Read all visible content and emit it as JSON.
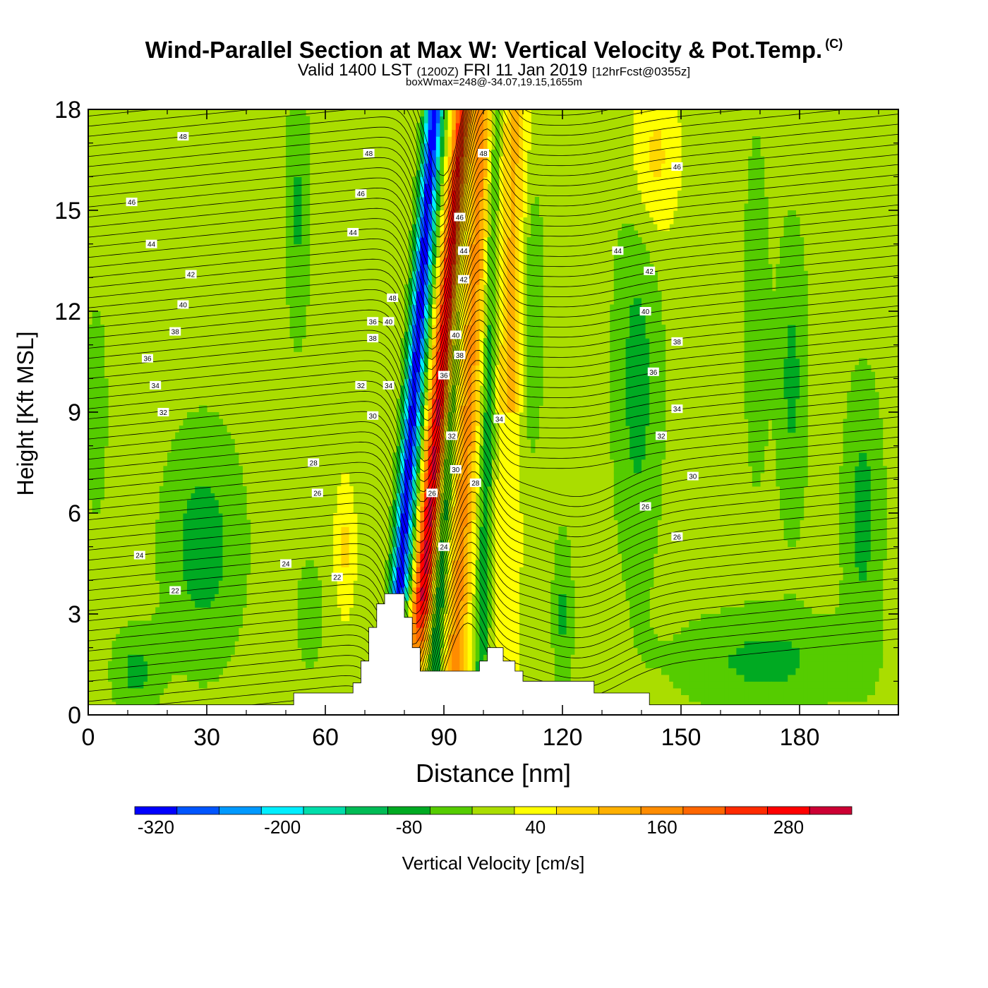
{
  "header": {
    "title": "Wind-Parallel Section at Max W: Vertical Velocity & Pot.Temp.",
    "copyright": "(C)",
    "valid_prefix": "Valid 1400 LST",
    "valid_z": "(1200Z)",
    "valid_date": "FRI 11 Jan 2019",
    "valid_fcst": "[12hrFcst@0355z]",
    "boxwmax": "boxWmax=248@-34.07,19.15,1655m"
  },
  "colors": {
    "frame": "#000000",
    "contour": "#000000",
    "terrain": "#ffffff",
    "background_field": "#aadd00"
  },
  "chart_data": {
    "type": "heatmap",
    "title": "Wind-Parallel Section at Max W: Vertical Velocity & Pot.Temp.",
    "xlabel": "Distance [nm]",
    "ylabel": "Height [Kft MSL]",
    "xlim": [
      0,
      205
    ],
    "ylim": [
      0,
      18
    ],
    "x_ticks": [
      0,
      30,
      60,
      90,
      120,
      150,
      180
    ],
    "x_ticklabels": [
      "0",
      "30",
      "60",
      "90",
      "120",
      "150",
      "180"
    ],
    "y_ticks": [
      0,
      3,
      6,
      9,
      12,
      15,
      18
    ],
    "y_ticklabels": [
      "0",
      "3",
      "6",
      "9",
      "12",
      "15",
      "18"
    ],
    "colorbar": {
      "label": "Vertical Velocity [cm/s]",
      "bounds": [
        -340,
        -300,
        -260,
        -220,
        -180,
        -140,
        -100,
        -60,
        -20,
        20,
        60,
        100,
        140,
        180,
        220,
        260,
        300,
        340
      ],
      "colors": [
        "#0000ff",
        "#0055ff",
        "#0099ff",
        "#00eeff",
        "#00ddaa",
        "#00bb55",
        "#00aa22",
        "#55cc00",
        "#aadd00",
        "#ffff00",
        "#ffd700",
        "#ffb000",
        "#ff8c00",
        "#ff6600",
        "#ff2a00",
        "#ff0000",
        "#cc0033"
      ],
      "tick_values": [
        -320,
        -200,
        -80,
        40,
        160,
        280
      ],
      "tick_labels": [
        "-320",
        "-200",
        "-80",
        "40",
        "160",
        "280"
      ]
    },
    "terrain_kft": [
      [
        0,
        0.3
      ],
      [
        52,
        0.3
      ],
      [
        52,
        0.65
      ],
      [
        67,
        0.65
      ],
      [
        67,
        0.95
      ],
      [
        69,
        0.95
      ],
      [
        69,
        1.6
      ],
      [
        71,
        1.6
      ],
      [
        71,
        2.6
      ],
      [
        73,
        2.6
      ],
      [
        73,
        3.3
      ],
      [
        75,
        3.3
      ],
      [
        75,
        3.6
      ],
      [
        80,
        3.6
      ],
      [
        80,
        2.9
      ],
      [
        82,
        2.9
      ],
      [
        82,
        2.0
      ],
      [
        84,
        2.0
      ],
      [
        84,
        1.3
      ],
      [
        99,
        1.3
      ],
      [
        99,
        1.6
      ],
      [
        101,
        1.6
      ],
      [
        101,
        2.0
      ],
      [
        105,
        2.0
      ],
      [
        105,
        1.6
      ],
      [
        108,
        1.6
      ],
      [
        108,
        1.3
      ],
      [
        110,
        1.3
      ],
      [
        110,
        1.0
      ],
      [
        128,
        1.0
      ],
      [
        128,
        0.65
      ],
      [
        142,
        0.65
      ],
      [
        142,
        0.3
      ],
      [
        205,
        0.3
      ]
    ],
    "w_field": [
      {
        "name": "updraft core",
        "w_max": 248,
        "location": "-34.07,19.15,1655m"
      }
    ],
    "theta_contours": {
      "interval": 2,
      "label_values": [
        "22",
        "24",
        "26",
        "28",
        "30",
        "32",
        "34",
        "36",
        "38",
        "40",
        "42",
        "44",
        "46",
        "48"
      ]
    },
    "contour_labels": [
      {
        "x": 24,
        "y": 17.2,
        "text": "48"
      },
      {
        "x": 71,
        "y": 16.7,
        "text": "48"
      },
      {
        "x": 100,
        "y": 16.7,
        "text": "48"
      },
      {
        "x": 149,
        "y": 16.3,
        "text": "46"
      },
      {
        "x": 11,
        "y": 15.25,
        "text": "46"
      },
      {
        "x": 69,
        "y": 15.5,
        "text": "46"
      },
      {
        "x": 94,
        "y": 14.8,
        "text": "46"
      },
      {
        "x": 16,
        "y": 14.0,
        "text": "44"
      },
      {
        "x": 67,
        "y": 14.35,
        "text": "44"
      },
      {
        "x": 95,
        "y": 13.8,
        "text": "44"
      },
      {
        "x": 134,
        "y": 13.8,
        "text": "44"
      },
      {
        "x": 26,
        "y": 13.1,
        "text": "42"
      },
      {
        "x": 95,
        "y": 12.95,
        "text": "42"
      },
      {
        "x": 142,
        "y": 13.2,
        "text": "42"
      },
      {
        "x": 24,
        "y": 12.2,
        "text": "40"
      },
      {
        "x": 77,
        "y": 12.4,
        "text": "48"
      },
      {
        "x": 76,
        "y": 11.7,
        "text": "40"
      },
      {
        "x": 72,
        "y": 11.7,
        "text": "36"
      },
      {
        "x": 93,
        "y": 11.3,
        "text": "40"
      },
      {
        "x": 141,
        "y": 12.0,
        "text": "40"
      },
      {
        "x": 22,
        "y": 11.4,
        "text": "38"
      },
      {
        "x": 72,
        "y": 11.2,
        "text": "38"
      },
      {
        "x": 94,
        "y": 10.7,
        "text": "38"
      },
      {
        "x": 149,
        "y": 11.1,
        "text": "38"
      },
      {
        "x": 15,
        "y": 10.6,
        "text": "36"
      },
      {
        "x": 90,
        "y": 10.1,
        "text": "36"
      },
      {
        "x": 143,
        "y": 10.2,
        "text": "36"
      },
      {
        "x": 17,
        "y": 9.8,
        "text": "34"
      },
      {
        "x": 69,
        "y": 9.8,
        "text": "32"
      },
      {
        "x": 76,
        "y": 9.8,
        "text": "34"
      },
      {
        "x": 104,
        "y": 8.8,
        "text": "34"
      },
      {
        "x": 149,
        "y": 9.1,
        "text": "34"
      },
      {
        "x": 19,
        "y": 9.0,
        "text": "32"
      },
      {
        "x": 72,
        "y": 8.9,
        "text": "30"
      },
      {
        "x": 92,
        "y": 8.3,
        "text": "32"
      },
      {
        "x": 145,
        "y": 8.3,
        "text": "32"
      },
      {
        "x": 57,
        "y": 7.5,
        "text": "28"
      },
      {
        "x": 93,
        "y": 7.3,
        "text": "30"
      },
      {
        "x": 153,
        "y": 7.1,
        "text": "30"
      },
      {
        "x": 58,
        "y": 6.6,
        "text": "26"
      },
      {
        "x": 98,
        "y": 6.9,
        "text": "28"
      },
      {
        "x": 87,
        "y": 6.6,
        "text": "26"
      },
      {
        "x": 141,
        "y": 6.2,
        "text": "26"
      },
      {
        "x": 149,
        "y": 5.3,
        "text": "26"
      },
      {
        "x": 13,
        "y": 4.75,
        "text": "24"
      },
      {
        "x": 90,
        "y": 5.0,
        "text": "24"
      },
      {
        "x": 50,
        "y": 4.5,
        "text": "24"
      },
      {
        "x": 63,
        "y": 4.1,
        "text": "22"
      },
      {
        "x": 22,
        "y": 3.7,
        "text": "22"
      }
    ]
  }
}
